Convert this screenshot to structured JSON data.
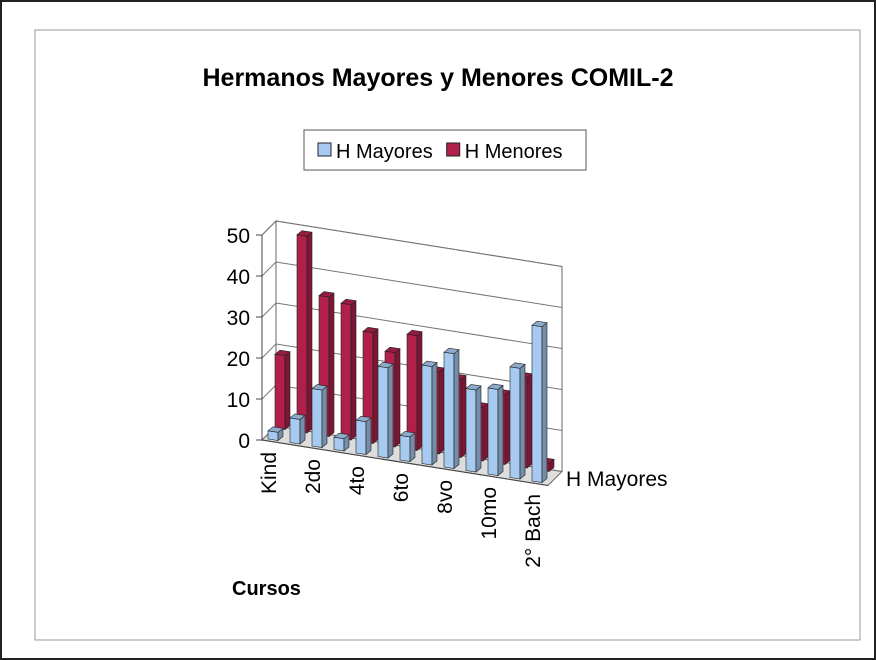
{
  "chart_data": {
    "type": "bar3d",
    "title": "Hermanos Mayores y Menores COMIL-2",
    "x_label": "Cursos",
    "depth_label": "H Mayores",
    "categories": [
      "Kind",
      null,
      "2do",
      null,
      "4to",
      null,
      "6to",
      null,
      "8vo",
      null,
      "10mo",
      null,
      "2° Bach"
    ],
    "series": [
      {
        "name": "H Mayores",
        "color": "#a6caf0",
        "values": [
          2,
          6,
          14,
          3,
          8,
          22,
          6,
          24,
          28,
          20,
          21,
          27,
          38
        ]
      },
      {
        "name": "H Menores",
        "color": "#b0204a",
        "values": [
          18,
          48,
          34,
          33,
          27,
          23,
          28,
          20,
          19,
          13,
          17,
          22,
          2
        ]
      }
    ],
    "ylim": [
      0,
      50
    ],
    "yticks": [
      0,
      10,
      20,
      30,
      40,
      50
    ],
    "grid": true,
    "legend": "top"
  }
}
